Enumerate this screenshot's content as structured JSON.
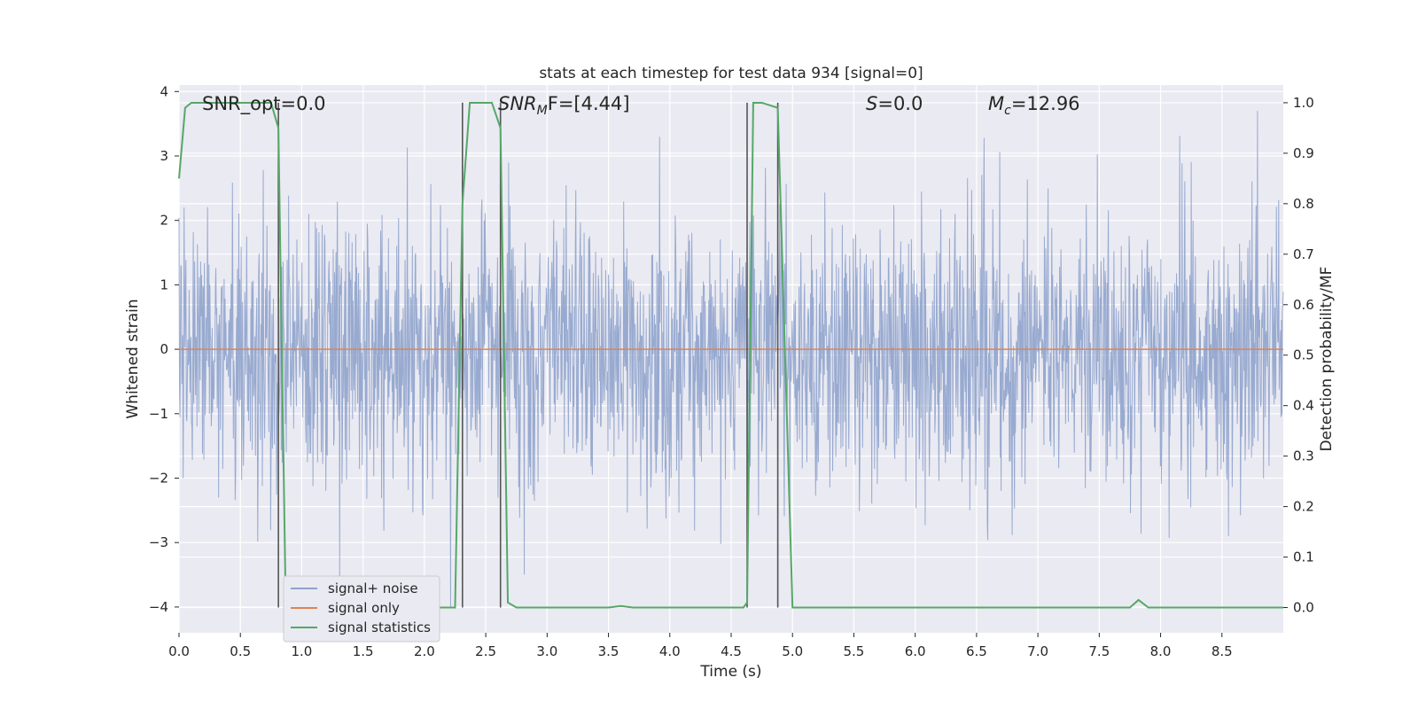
{
  "chart_data": {
    "type": "line",
    "title": "stats at each timestep for test data 934 [signal=0]",
    "xlabel": "Time (s)",
    "ylabel": "Whitened strain",
    "ylabel_right": "Detection probability/MF",
    "xlim": [
      0.0,
      9.0
    ],
    "ylim": [
      -4.4,
      4.1
    ],
    "ylim_right": [
      -0.05,
      1.035
    ],
    "x_ticks": [
      0.0,
      0.5,
      1.0,
      1.5,
      2.0,
      2.5,
      3.0,
      3.5,
      4.0,
      4.5,
      5.0,
      5.5,
      6.0,
      6.5,
      7.0,
      7.5,
      8.0,
      8.5
    ],
    "x_tick_labels": [
      "0.0",
      "0.5",
      "1.0",
      "1.5",
      "2.0",
      "2.5",
      "3.0",
      "3.5",
      "4.0",
      "4.5",
      "5.0",
      "5.5",
      "6.0",
      "6.5",
      "7.0",
      "7.5",
      "8.0",
      "8.5"
    ],
    "y_ticks": [
      -4,
      -3,
      -2,
      -1,
      0,
      1,
      2,
      3,
      4
    ],
    "y_tick_labels": [
      "−4",
      "−3",
      "−2",
      "−1",
      "0",
      "1",
      "2",
      "3",
      "4"
    ],
    "y_ticks_right": [
      0.0,
      0.1,
      0.2,
      0.3,
      0.4,
      0.5,
      0.6,
      0.7,
      0.8,
      0.9,
      1.0
    ],
    "y_tick_labels_right": [
      "0.0",
      "0.1",
      "0.2",
      "0.3",
      "0.4",
      "0.5",
      "0.6",
      "0.7",
      "0.8",
      "0.9",
      "1.0"
    ],
    "grid": true,
    "legend": {
      "placement": "lower-left",
      "entries": [
        {
          "label": "signal+ noise",
          "color": "#8fa3cc"
        },
        {
          "label": "signal only",
          "color": "#dd8452"
        },
        {
          "label": "signal statistics",
          "color": "#55a868"
        }
      ]
    },
    "annotations": {
      "snr_opt": "SNR_opt=0.0",
      "snr_mf_prefix": "SNR",
      "snr_mf_sub": "M",
      "snr_mf_rest": "F=[4.44]",
      "s_var": "S",
      "s_rest": "=0.0",
      "mc_var": "M",
      "mc_sub": "c",
      "mc_rest": "=12.96"
    },
    "series": [
      {
        "name": "signal+ noise",
        "axis": "left",
        "color": "#8fa3cc",
        "description_range": [
          -4.0,
          3.7
        ],
        "typical_amplitude": 1.4
      },
      {
        "name": "signal only",
        "axis": "left",
        "color": "#dd8452",
        "x": [
          0.0,
          9.0
        ],
        "values": [
          0.0,
          0.0
        ]
      },
      {
        "name": "signal statistics",
        "axis": "right",
        "color": "#55a868",
        "x": [
          0.0,
          0.05,
          0.1,
          0.2,
          0.5,
          0.75,
          0.81,
          0.87,
          0.95,
          2.25,
          2.31,
          2.37,
          2.45,
          2.55,
          2.62,
          2.68,
          2.75,
          3.5,
          3.6,
          3.7,
          4.6,
          4.63,
          4.68,
          4.75,
          4.88,
          5.0,
          7.75,
          7.82,
          7.9,
          9.0
        ],
        "values": [
          0.85,
          0.99,
          1.0,
          1.0,
          1.0,
          1.0,
          0.95,
          0.0,
          0.0,
          0.0,
          0.8,
          1.0,
          1.0,
          1.0,
          0.95,
          0.01,
          0.0,
          0.0,
          0.003,
          0.0,
          0.0,
          0.01,
          1.0,
          1.0,
          0.99,
          0.0,
          0.0,
          0.015,
          0.0,
          0.0
        ]
      }
    ],
    "vertical_markers": [
      0.81,
      2.31,
      2.62,
      4.63,
      4.88
    ],
    "marker_color": "#555555"
  }
}
